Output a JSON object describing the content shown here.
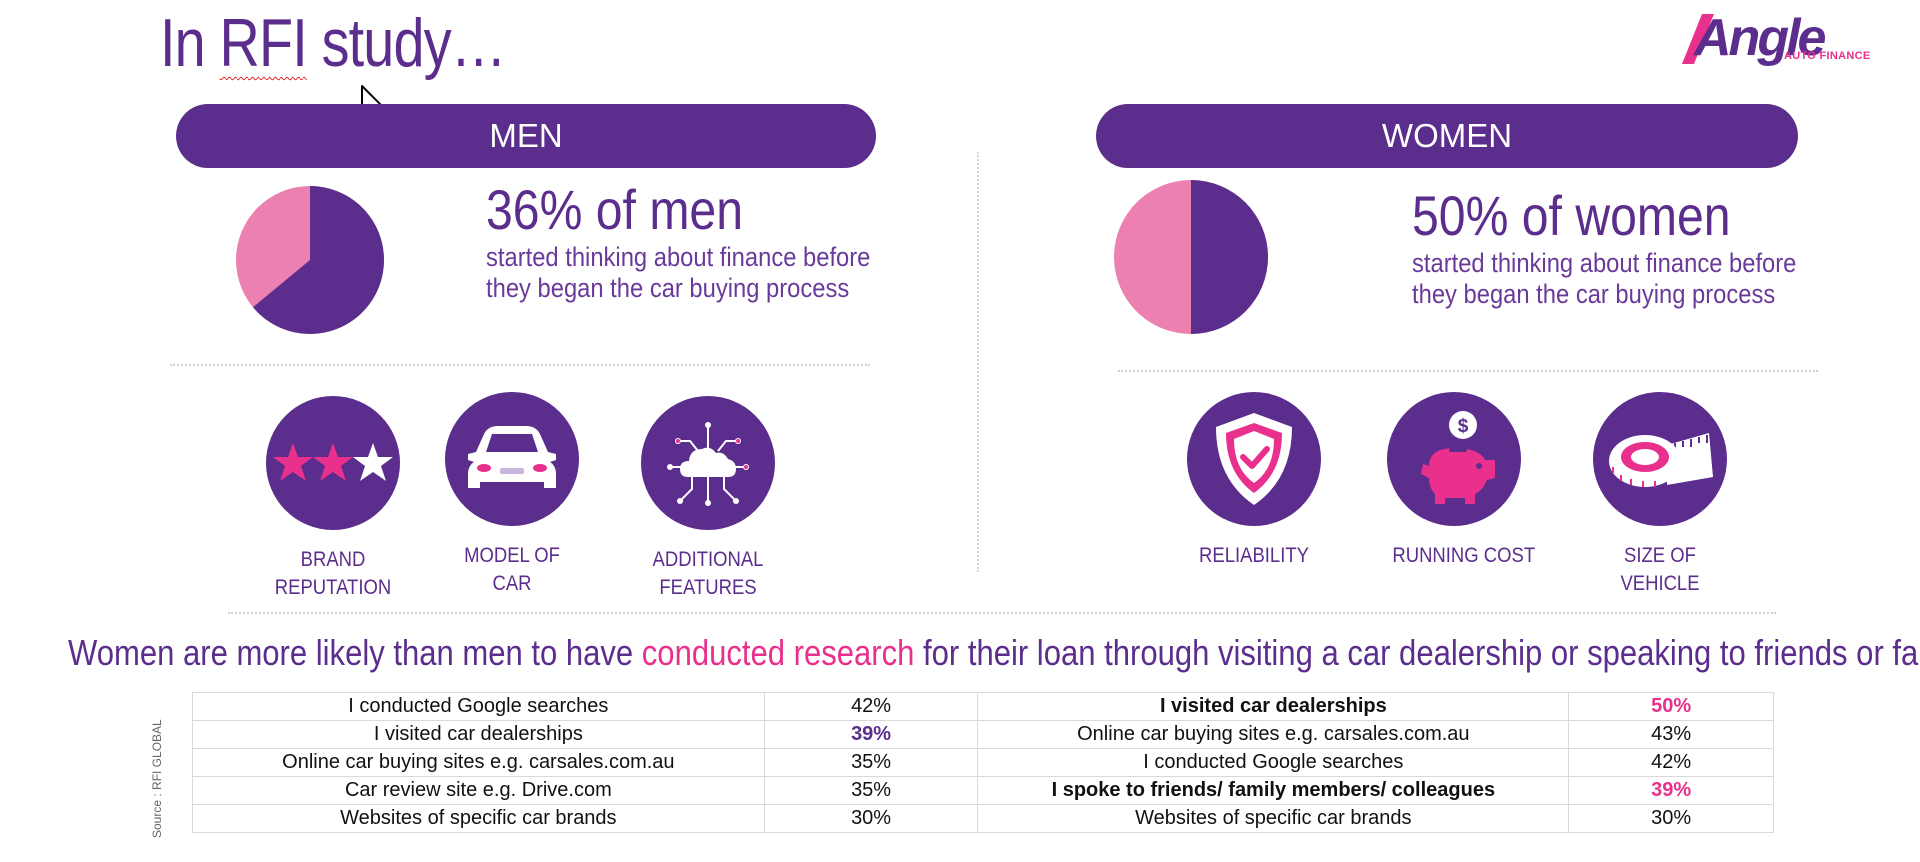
{
  "title": {
    "prefix": "In ",
    "rfi": "RFI",
    "suffix": " study…"
  },
  "logo": {
    "name": "Angle",
    "sub": "AUTO FINANCE"
  },
  "men": {
    "header": "MEN",
    "stat_big": "36% of men",
    "stat_small": "started thinking about finance before they began the car buying process",
    "pie_percent": 36,
    "icons": [
      {
        "icon": "stars-icon",
        "label_line1": "BRAND",
        "label_line2": "REPUTATION"
      },
      {
        "icon": "car-icon",
        "label_line1": "MODEL OF",
        "label_line2": "CAR"
      },
      {
        "icon": "cloud-network-icon",
        "label_line1": "ADDITIONAL",
        "label_line2": "FEATURES"
      }
    ]
  },
  "women": {
    "header": "WOMEN",
    "stat_big": "50% of women",
    "stat_small": "started thinking about finance before they began the car buying process",
    "pie_percent": 50,
    "icons": [
      {
        "icon": "shield-check-icon",
        "label_line1": "RELIABILITY",
        "label_line2": ""
      },
      {
        "icon": "piggy-bank-icon",
        "label_line1": "RUNNING COST",
        "label_line2": ""
      },
      {
        "icon": "tape-measure-icon",
        "label_line1": "SIZE OF",
        "label_line2": "VEHICLE"
      }
    ]
  },
  "sentence": {
    "part1": "Women are more likely than men to have ",
    "highlight": "conducted research",
    "part2": " for their loan through visiting a car dealership or speaking to friends or family"
  },
  "source": {
    "text": "Source : RFI GLOBAL"
  },
  "table": {
    "rows": [
      {
        "men_item": "I conducted Google searches",
        "men_pct": "42%",
        "women_item": "I visited car dealerships",
        "women_pct": "50%"
      },
      {
        "men_item": "I visited car dealerships",
        "men_pct": "39%",
        "women_item": "Online car buying sites e.g. carsales.com.au",
        "women_pct": "43%"
      },
      {
        "men_item": "Online car buying sites e.g. carsales.com.au",
        "men_pct": "35%",
        "women_item": "I conducted Google searches",
        "women_pct": "42%"
      },
      {
        "men_item": "Car review site e.g. Drive.com",
        "men_pct": "35%",
        "women_item": "I spoke to friends/ family members/ colleagues",
        "women_pct": "39%"
      },
      {
        "men_item": "Websites of specific car brands",
        "men_pct": "30%",
        "women_item": "Websites of specific car brands",
        "women_pct": "30%"
      }
    ]
  },
  "colors": {
    "purple": "#5b2d8c",
    "pink": "#e8308c",
    "light_pink": "#ec80b0"
  }
}
